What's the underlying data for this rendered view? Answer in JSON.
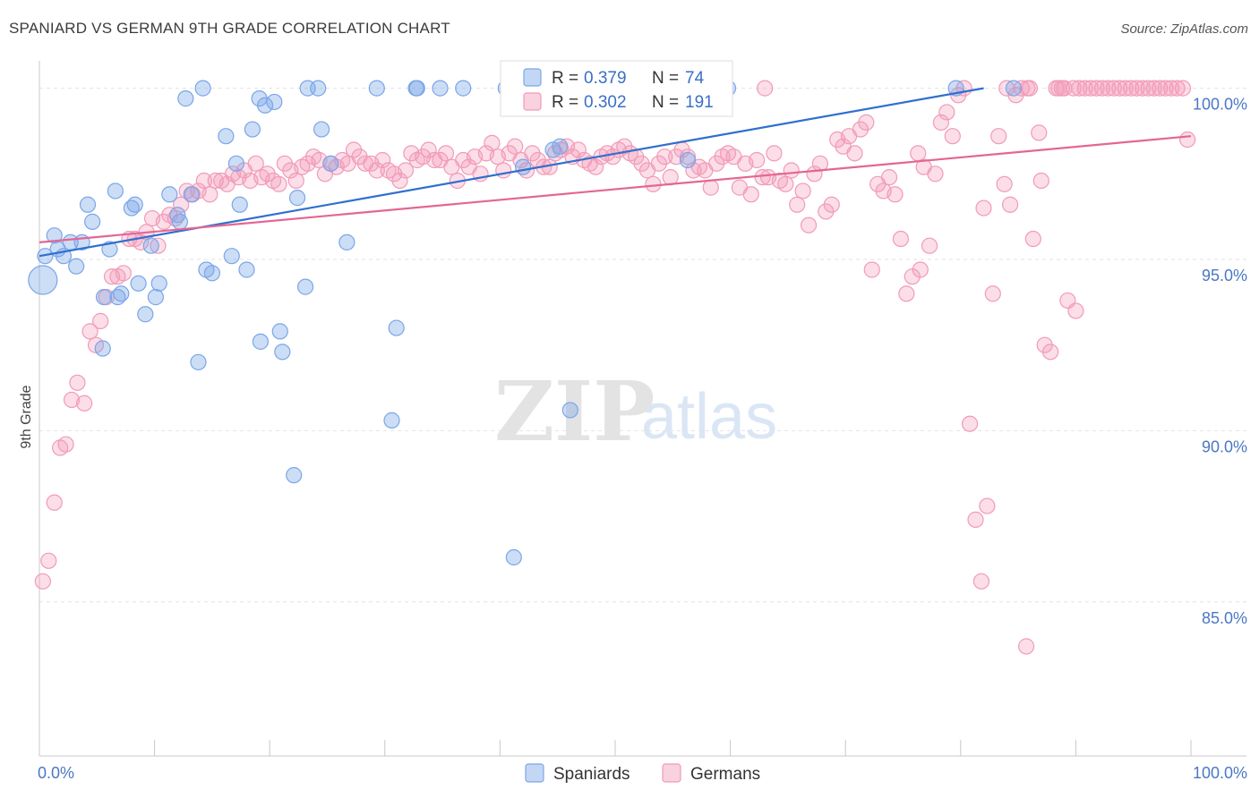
{
  "title": "SPANIARD VS GERMAN 9TH GRADE CORRELATION CHART",
  "source": "Source: ZipAtlas.com",
  "chart_data": {
    "type": "scatter",
    "title": "SPANIARD VS GERMAN 9TH GRADE CORRELATION CHART",
    "xlabel": "",
    "ylabel": "9th Grade",
    "xlim": [
      0,
      100
    ],
    "ylim": [
      80.5,
      100.8
    ],
    "x_tick_labels": [
      {
        "value": 0,
        "label": "0.0%"
      },
      {
        "value": 100,
        "label": "100.0%"
      }
    ],
    "y_tick_labels": [
      {
        "value": 100,
        "label": "100.0%"
      },
      {
        "value": 95,
        "label": "95.0%"
      },
      {
        "value": 90,
        "label": "90.0%"
      },
      {
        "value": 85,
        "label": "85.0%"
      }
    ],
    "grid": true,
    "legend_position": "top-center",
    "legend": [
      {
        "series": "Spaniards",
        "r_label": "R =",
        "r_value": "0.379",
        "n_label": "N =",
        "n_value": "74"
      },
      {
        "series": "Germans",
        "r_label": "R =",
        "r_value": "0.302",
        "n_label": "N =",
        "n_value": "191"
      }
    ],
    "series": [
      {
        "name": "Spaniards",
        "color": "#7aa6e8",
        "line_color": "#2f6fcf",
        "trend": {
          "x": [
            0,
            82
          ],
          "y": [
            95.1,
            100.0
          ]
        },
        "points": [
          [
            0.3,
            94.4
          ],
          [
            0.5,
            95.1
          ],
          [
            1.3,
            95.7
          ],
          [
            1.6,
            95.3
          ],
          [
            2.1,
            95.1
          ],
          [
            2.7,
            95.5
          ],
          [
            3.2,
            94.8
          ],
          [
            3.7,
            95.5
          ],
          [
            4.2,
            96.6
          ],
          [
            4.6,
            96.1
          ],
          [
            5.5,
            92.4
          ],
          [
            5.6,
            93.9
          ],
          [
            6.1,
            95.3
          ],
          [
            6.6,
            97.0
          ],
          [
            6.8,
            93.9
          ],
          [
            7.1,
            94.0
          ],
          [
            8.0,
            96.5
          ],
          [
            8.3,
            96.6
          ],
          [
            8.6,
            94.3
          ],
          [
            9.2,
            93.4
          ],
          [
            9.7,
            95.4
          ],
          [
            10.1,
            93.9
          ],
          [
            10.4,
            94.3
          ],
          [
            11.3,
            96.9
          ],
          [
            12.0,
            96.3
          ],
          [
            12.2,
            96.1
          ],
          [
            12.7,
            99.7
          ],
          [
            13.2,
            96.9
          ],
          [
            13.8,
            92.0
          ],
          [
            14.2,
            100.0
          ],
          [
            14.5,
            94.7
          ],
          [
            15.0,
            94.6
          ],
          [
            16.2,
            98.6
          ],
          [
            16.7,
            95.1
          ],
          [
            17.1,
            97.8
          ],
          [
            17.4,
            96.6
          ],
          [
            18.0,
            94.7
          ],
          [
            18.5,
            98.8
          ],
          [
            19.2,
            92.6
          ],
          [
            19.1,
            99.7
          ],
          [
            19.6,
            99.5
          ],
          [
            20.4,
            99.6
          ],
          [
            20.9,
            92.9
          ],
          [
            21.1,
            92.3
          ],
          [
            22.1,
            88.7
          ],
          [
            22.4,
            96.8
          ],
          [
            23.1,
            94.2
          ],
          [
            23.3,
            100.0
          ],
          [
            24.2,
            100.0
          ],
          [
            24.5,
            98.8
          ],
          [
            25.3,
            97.8
          ],
          [
            26.7,
            95.5
          ],
          [
            29.3,
            100.0
          ],
          [
            30.6,
            90.3
          ],
          [
            31.0,
            93.0
          ],
          [
            32.7,
            100.0
          ],
          [
            32.8,
            100.0
          ],
          [
            34.8,
            100.0
          ],
          [
            36.8,
            100.0
          ],
          [
            40.5,
            100.0
          ],
          [
            41.2,
            86.3
          ],
          [
            42.0,
            97.7
          ],
          [
            44.1,
            100.0
          ],
          [
            44.6,
            98.2
          ],
          [
            45.2,
            98.3
          ],
          [
            46.1,
            90.6
          ],
          [
            47.1,
            100.0
          ],
          [
            50.3,
            100.0
          ],
          [
            55.6,
            100.0
          ],
          [
            56.3,
            97.9
          ],
          [
            58.3,
            100.0
          ],
          [
            59.8,
            100.0
          ],
          [
            79.6,
            100.0
          ],
          [
            84.6,
            100.0
          ]
        ]
      },
      {
        "name": "Germans",
        "color": "#f29ab8",
        "line_color": "#e36694",
        "trend": {
          "x": [
            0,
            100
          ],
          "y": [
            95.5,
            98.6
          ]
        },
        "points": [
          [
            0.3,
            85.6
          ],
          [
            0.8,
            86.2
          ],
          [
            1.3,
            87.9
          ],
          [
            1.8,
            89.5
          ],
          [
            2.3,
            89.6
          ],
          [
            2.8,
            90.9
          ],
          [
            3.3,
            91.4
          ],
          [
            3.9,
            90.8
          ],
          [
            4.4,
            92.9
          ],
          [
            4.9,
            92.5
          ],
          [
            5.3,
            93.2
          ],
          [
            5.8,
            93.9
          ],
          [
            6.3,
            94.5
          ],
          [
            6.8,
            94.5
          ],
          [
            7.3,
            94.6
          ],
          [
            7.8,
            95.6
          ],
          [
            8.3,
            95.6
          ],
          [
            8.8,
            95.5
          ],
          [
            9.3,
            95.8
          ],
          [
            9.8,
            96.2
          ],
          [
            10.3,
            95.4
          ],
          [
            10.8,
            96.1
          ],
          [
            11.3,
            96.3
          ],
          [
            11.8,
            96.2
          ],
          [
            12.3,
            96.6
          ],
          [
            12.8,
            97.0
          ],
          [
            13.3,
            96.9
          ],
          [
            13.8,
            97.0
          ],
          [
            14.3,
            97.3
          ],
          [
            14.8,
            96.9
          ],
          [
            15.3,
            97.3
          ],
          [
            15.8,
            97.3
          ],
          [
            16.3,
            97.2
          ],
          [
            16.8,
            97.5
          ],
          [
            17.3,
            97.4
          ],
          [
            17.8,
            97.6
          ],
          [
            18.3,
            97.3
          ],
          [
            18.8,
            97.8
          ],
          [
            19.3,
            97.4
          ],
          [
            19.8,
            97.5
          ],
          [
            20.3,
            97.3
          ],
          [
            20.8,
            97.2
          ],
          [
            21.3,
            97.8
          ],
          [
            21.8,
            97.6
          ],
          [
            22.3,
            97.3
          ],
          [
            22.8,
            97.7
          ],
          [
            23.3,
            97.8
          ],
          [
            23.8,
            98.0
          ],
          [
            24.3,
            97.9
          ],
          [
            24.8,
            97.5
          ],
          [
            25.3,
            97.8
          ],
          [
            25.8,
            97.7
          ],
          [
            26.3,
            97.9
          ],
          [
            26.8,
            97.8
          ],
          [
            27.3,
            98.2
          ],
          [
            27.8,
            98.0
          ],
          [
            28.3,
            97.8
          ],
          [
            28.8,
            97.8
          ],
          [
            29.3,
            97.6
          ],
          [
            29.8,
            97.9
          ],
          [
            30.3,
            97.6
          ],
          [
            30.8,
            97.5
          ],
          [
            31.3,
            97.3
          ],
          [
            31.8,
            97.6
          ],
          [
            32.3,
            98.1
          ],
          [
            32.8,
            97.9
          ],
          [
            33.3,
            98.0
          ],
          [
            33.8,
            98.2
          ],
          [
            34.3,
            97.9
          ],
          [
            34.8,
            97.9
          ],
          [
            35.3,
            98.1
          ],
          [
            35.8,
            97.7
          ],
          [
            36.3,
            97.3
          ],
          [
            36.8,
            97.9
          ],
          [
            37.3,
            97.7
          ],
          [
            37.8,
            98.0
          ],
          [
            38.3,
            97.5
          ],
          [
            38.8,
            98.1
          ],
          [
            39.3,
            98.4
          ],
          [
            39.8,
            98.0
          ],
          [
            40.3,
            97.6
          ],
          [
            40.8,
            98.1
          ],
          [
            41.3,
            98.3
          ],
          [
            41.8,
            97.9
          ],
          [
            42.3,
            97.6
          ],
          [
            42.8,
            98.1
          ],
          [
            43.3,
            97.9
          ],
          [
            43.8,
            97.7
          ],
          [
            44.3,
            97.7
          ],
          [
            44.8,
            98.1
          ],
          [
            45.3,
            98.2
          ],
          [
            45.8,
            98.3
          ],
          [
            46.3,
            98.0
          ],
          [
            46.8,
            98.2
          ],
          [
            47.3,
            97.9
          ],
          [
            47.8,
            97.8
          ],
          [
            48.3,
            97.7
          ],
          [
            48.8,
            98.0
          ],
          [
            49.3,
            98.1
          ],
          [
            49.8,
            98.0
          ],
          [
            50.3,
            98.2
          ],
          [
            50.8,
            98.3
          ],
          [
            51.3,
            98.1
          ],
          [
            51.8,
            98.0
          ],
          [
            52.3,
            97.8
          ],
          [
            52.8,
            97.6
          ],
          [
            53.3,
            97.2
          ],
          [
            53.8,
            97.8
          ],
          [
            54.3,
            98.0
          ],
          [
            54.8,
            97.4
          ],
          [
            55.3,
            98.0
          ],
          [
            55.8,
            98.2
          ],
          [
            56.3,
            98.0
          ],
          [
            56.8,
            97.6
          ],
          [
            57.3,
            97.7
          ],
          [
            57.8,
            97.6
          ],
          [
            58.3,
            97.1
          ],
          [
            58.8,
            97.8
          ],
          [
            59.3,
            98.0
          ],
          [
            59.8,
            98.1
          ],
          [
            60.3,
            98.0
          ],
          [
            60.8,
            97.1
          ],
          [
            61.3,
            97.8
          ],
          [
            61.8,
            96.9
          ],
          [
            62.3,
            97.9
          ],
          [
            62.8,
            97.4
          ],
          [
            63.3,
            97.4
          ],
          [
            63.8,
            98.1
          ],
          [
            64.3,
            97.3
          ],
          [
            64.8,
            97.2
          ],
          [
            65.3,
            97.6
          ],
          [
            65.8,
            96.6
          ],
          [
            66.3,
            97.0
          ],
          [
            66.8,
            96.0
          ],
          [
            67.3,
            97.5
          ],
          [
            67.8,
            97.8
          ],
          [
            68.3,
            96.4
          ],
          [
            68.8,
            96.6
          ],
          [
            69.3,
            98.5
          ],
          [
            69.8,
            98.3
          ],
          [
            70.3,
            98.6
          ],
          [
            70.8,
            98.1
          ],
          [
            71.3,
            98.8
          ],
          [
            71.8,
            99.0
          ],
          [
            72.3,
            94.7
          ],
          [
            72.8,
            97.2
          ],
          [
            73.3,
            97.0
          ],
          [
            73.8,
            97.4
          ],
          [
            74.3,
            96.9
          ],
          [
            74.8,
            95.6
          ],
          [
            75.3,
            94.0
          ],
          [
            75.8,
            94.5
          ],
          [
            76.3,
            98.1
          ],
          [
            76.8,
            97.7
          ],
          [
            77.3,
            95.4
          ],
          [
            77.8,
            97.5
          ],
          [
            78.3,
            99.0
          ],
          [
            78.8,
            99.3
          ],
          [
            79.3,
            98.6
          ],
          [
            79.8,
            99.8
          ],
          [
            80.3,
            100.0
          ],
          [
            80.8,
            90.2
          ],
          [
            81.3,
            87.4
          ],
          [
            81.8,
            85.6
          ],
          [
            82.3,
            87.8
          ],
          [
            82.8,
            94.0
          ],
          [
            83.3,
            98.6
          ],
          [
            83.8,
            97.2
          ],
          [
            84.3,
            96.6
          ],
          [
            84.8,
            99.8
          ],
          [
            85.3,
            100.0
          ],
          [
            85.8,
            100.0
          ],
          [
            86.3,
            95.6
          ],
          [
            86.8,
            98.7
          ],
          [
            87.3,
            92.5
          ],
          [
            87.8,
            92.3
          ],
          [
            88.3,
            100.0
          ],
          [
            88.8,
            100.0
          ],
          [
            89.3,
            93.8
          ],
          [
            89.8,
            100.0
          ],
          [
            90.3,
            100.0
          ],
          [
            90.8,
            100.0
          ],
          [
            91.3,
            100.0
          ],
          [
            91.8,
            100.0
          ],
          [
            92.3,
            100.0
          ],
          [
            92.8,
            100.0
          ],
          [
            93.3,
            100.0
          ],
          [
            93.8,
            100.0
          ],
          [
            94.3,
            100.0
          ],
          [
            94.8,
            100.0
          ],
          [
            95.3,
            100.0
          ],
          [
            95.8,
            100.0
          ],
          [
            96.3,
            100.0
          ],
          [
            96.8,
            100.0
          ],
          [
            97.3,
            100.0
          ],
          [
            97.8,
            100.0
          ],
          [
            98.3,
            100.0
          ],
          [
            98.8,
            100.0
          ],
          [
            99.3,
            100.0
          ],
          [
            99.7,
            98.5
          ],
          [
            63.0,
            100.0
          ],
          [
            55.0,
            99.6
          ],
          [
            76.5,
            94.7
          ],
          [
            82.0,
            96.5
          ],
          [
            84.0,
            100.0
          ],
          [
            85.7,
            83.7
          ],
          [
            86.0,
            100.0
          ],
          [
            87.0,
            97.3
          ],
          [
            88.5,
            100.0
          ],
          [
            89.0,
            100.0
          ],
          [
            90.0,
            93.5
          ]
        ]
      }
    ],
    "bottom_legend": [
      "Spaniards",
      "Germans"
    ]
  }
}
